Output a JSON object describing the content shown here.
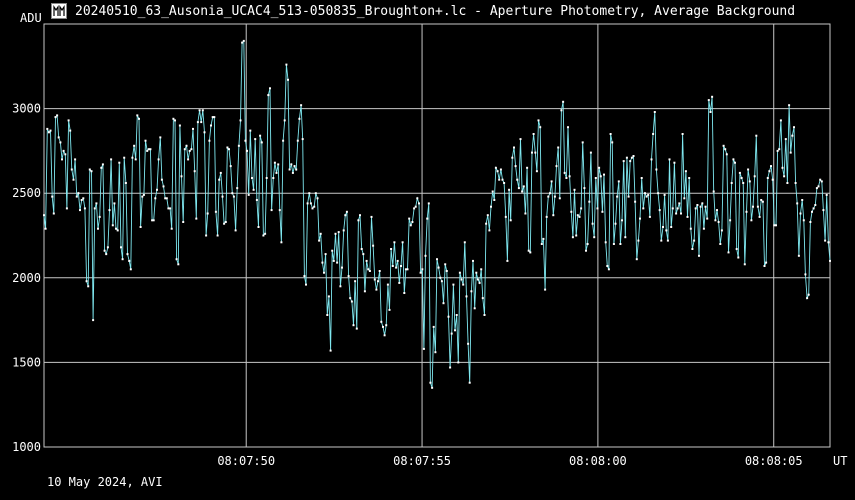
{
  "window": {
    "title": "20240510_63_Ausonia_UCAC4_513-050835_Broughton+.lc - Aperture Photometry, Average Background",
    "icon": "light-curve-app-icon"
  },
  "footer": {
    "date_source": "10 May 2024, AVI"
  },
  "colors": {
    "background": "#000000",
    "grid": "#c8c8c8",
    "series": "#7fe8f0",
    "text": "#ffffff"
  },
  "chart_data": {
    "type": "line",
    "title": "20240510_63_Ausonia_UCAC4_513-050835_Broughton+.lc - Aperture Photometry, Average Background",
    "ylabel": "ADU",
    "xlabel": "UT",
    "ylim": [
      1000,
      3500
    ],
    "yticks": [
      1000,
      1500,
      2000,
      2500,
      3000
    ],
    "xlim": [
      0,
      22.35
    ],
    "xticks": [
      {
        "value": 5.75,
        "label": "08:07:50"
      },
      {
        "value": 10.75,
        "label": "08:07:55"
      },
      {
        "value": 15.75,
        "label": "08:08:00"
      },
      {
        "value": 20.75,
        "label": "08:08:05"
      }
    ],
    "grid": true,
    "series": [
      {
        "values": [
          2370,
          2290,
          2880,
          2860,
          2870,
          2480,
          2380,
          2950,
          2960,
          2830,
          2800,
          2700,
          2750,
          2730,
          2410,
          2930,
          2870,
          2640,
          2580,
          2700,
          2480,
          2500,
          2400,
          2460,
          2470,
          2410,
          1980,
          1950,
          2640,
          2630,
          1750,
          2410,
          2440,
          2290,
          2360,
          2650,
          2670,
          2160,
          2140,
          2180,
          2400,
          2700,
          2310,
          2440,
          2290,
          2280,
          2680,
          2180,
          2110,
          2710,
          2560,
          2140,
          2100,
          2050,
          2710,
          2780,
          2700,
          2960,
          2940,
          2300,
          2480,
          2490,
          2810,
          2750,
          2760,
          2760,
          2340,
          2340,
          2470,
          2520,
          2700,
          2830,
          2580,
          2540,
          2470,
          2470,
          2410,
          2410,
          2290,
          2940,
          2930,
          2110,
          2080,
          2900,
          2600,
          2330,
          2760,
          2780,
          2700,
          2750,
          2760,
          2880,
          2630,
          2350,
          2920,
          2990,
          2920,
          2990,
          2860,
          2250,
          2380,
          2810,
          2900,
          2950,
          2950,
          2390,
          2250,
          2580,
          2620,
          2480,
          2320,
          2330,
          2770,
          2760,
          2660,
          2500,
          2480,
          2280,
          2530,
          2780,
          2930,
          3390,
          3400,
          2810,
          2750,
          2490,
          2870,
          2590,
          2520,
          2820,
          2460,
          2300,
          2840,
          2800,
          2250,
          2260,
          2590,
          3080,
          3120,
          2400,
          2590,
          2680,
          2620,
          2670,
          2400,
          2210,
          2810,
          2930,
          3260,
          3170,
          2640,
          2670,
          2620,
          2660,
          2640,
          2810,
          2940,
          3020,
          2820,
          2010,
          1960,
          2440,
          2500,
          2440,
          2410,
          2420,
          2500,
          2470,
          2220,
          2260,
          2090,
          2030,
          2140,
          1780,
          1890,
          1570,
          2160,
          2100,
          2260,
          2090,
          2270,
          1950,
          2060,
          2280,
          2370,
          2390,
          2010,
          1880,
          1860,
          1720,
          1980,
          1700,
          2340,
          2370,
          2170,
          2140,
          1920,
          2100,
          2050,
          2040,
          2360,
          2190,
          1990,
          1930,
          1980,
          2040,
          1740,
          1710,
          1660,
          1720,
          1960,
          1810,
          2170,
          2070,
          2210,
          2060,
          2100,
          1970,
          2070,
          2210,
          1910,
          2050,
          2050,
          2350,
          2310,
          2330,
          2410,
          2420,
          2470,
          2440,
          2030,
          2050,
          1580,
          2130,
          2350,
          2440,
          1380,
          1350,
          1710,
          1560,
          2110,
          2060,
          2000,
          1980,
          1850,
          2080,
          2040,
          1770,
          1470,
          1670,
          1960,
          1690,
          1780,
          1500,
          2030,
          1990,
          1960,
          2210,
          1890,
          1610,
          1380,
          1920,
          2100,
          1820,
          2030,
          1990,
          1970,
          2050,
          1880,
          1780,
          2320,
          2370,
          2280,
          2420,
          2510,
          2460,
          2650,
          2630,
          2580,
          2640,
          2580,
          2560,
          2360,
          2100,
          2520,
          2340,
          2710,
          2770,
          2660,
          2580,
          2530,
          2820,
          2510,
          2540,
          2380,
          2650,
          2160,
          2150,
          2740,
          2850,
          2740,
          2630,
          2930,
          2890,
          2200,
          2230,
          1930,
          2360,
          2480,
          2500,
          2570,
          2370,
          2480,
          2660,
          2770,
          2470,
          2990,
          3040,
          2620,
          2590,
          2890,
          2600,
          2390,
          2240,
          2520,
          2250,
          2370,
          2360,
          2410,
          2800,
          2530,
          2160,
          2200,
          2450,
          2740,
          2320,
          2240,
          2590,
          2410,
          2650,
          2600,
          2390,
          2610,
          2210,
          2070,
          2050,
          2850,
          2800,
          2200,
          2320,
          2480,
          2570,
          2200,
          2340,
          2690,
          2240,
          2710,
          2480,
          2690,
          2710,
          2720,
          2450,
          2110,
          2220,
          2350,
          2590,
          2410,
          2500,
          2480,
          2490,
          2360,
          2700,
          2850,
          2980,
          2640,
          2500,
          2400,
          2220,
          2300,
          2490,
          2280,
          2220,
          2700,
          2300,
          2410,
          2680,
          2380,
          2410,
          2440,
          2380,
          2850,
          2470,
          2630,
          2360,
          2590,
          2290,
          2170,
          2220,
          2410,
          2430,
          2130,
          2420,
          2440,
          2290,
          2420,
          2350,
          3050,
          2980,
          3070,
          2510,
          2340,
          2400,
          2330,
          2200,
          2280,
          2780,
          2760,
          2730,
          2150,
          2340,
          2560,
          2700,
          2680,
          2170,
          2120,
          2620,
          2590,
          2560,
          2080,
          2390,
          2640,
          2570,
          2340,
          2420,
          2600,
          2840,
          2420,
          2360,
          2460,
          2450,
          2070,
          2090,
          2590,
          2630,
          2660,
          2580,
          2310,
          2310,
          2750,
          2760,
          2930,
          2650,
          2600,
          2820,
          2560,
          3020,
          2740,
          2840,
          2890,
          2560,
          2440,
          2130,
          2380,
          2460,
          2340,
          2020,
          1880,
          1900,
          2330,
          2390,
          2410,
          2430,
          2530,
          2540,
          2580,
          2570,
          2400,
          2220,
          2490,
          2210,
          2100
        ]
      }
    ]
  }
}
